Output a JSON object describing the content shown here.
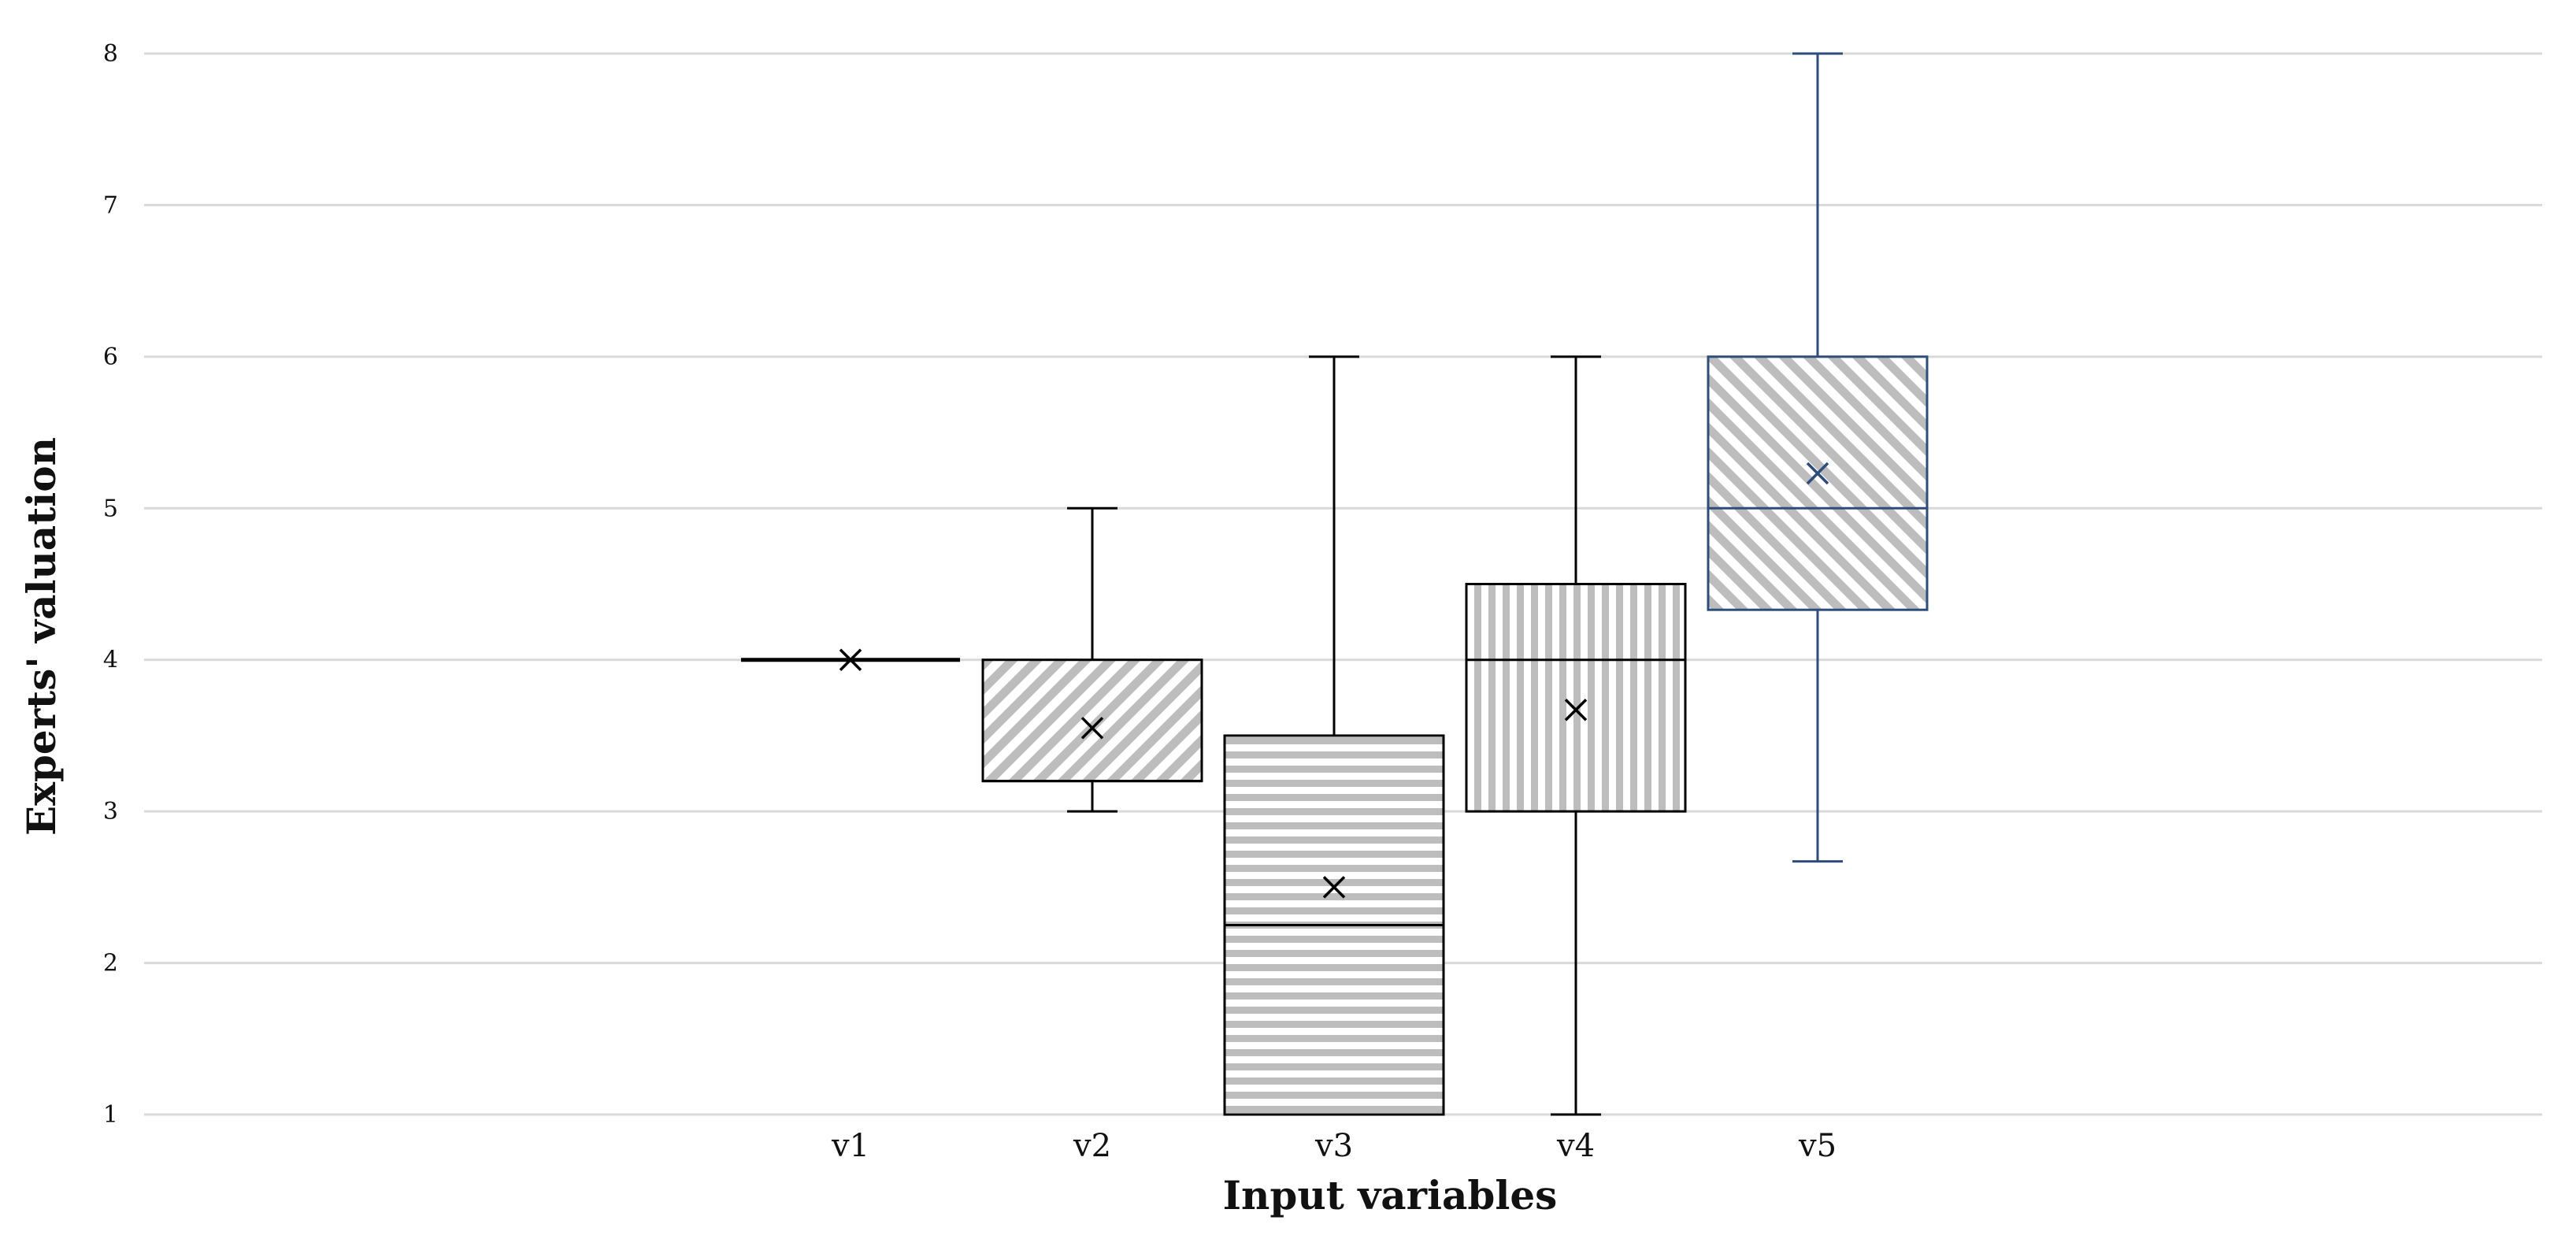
{
  "chart_data": {
    "type": "box",
    "xlabel": "Input variables",
    "ylabel": "Experts' valuation",
    "ylim": [
      1,
      8
    ],
    "yticks": [
      "1",
      "2",
      "3",
      "4",
      "5",
      "6",
      "7",
      "8"
    ],
    "grid": true,
    "categories": [
      "v1",
      "v2",
      "v3",
      "v4",
      "v5"
    ],
    "boxes": [
      {
        "category": "v1",
        "min": 4,
        "q1": 4,
        "median": 4,
        "q3": 4,
        "max": 4,
        "mean": 4.0,
        "pattern": "none",
        "color": "#000000"
      },
      {
        "category": "v2",
        "min": 3,
        "q1": 3.2,
        "median": 3.2,
        "q3": 4,
        "max": 5,
        "mean": 3.55,
        "pattern": "diagonal-down",
        "color": "#000000"
      },
      {
        "category": "v3",
        "min": 1,
        "q1": 1,
        "median": 2.25,
        "q3": 3.5,
        "max": 6,
        "mean": 2.5,
        "pattern": "horizontal",
        "color": "#000000"
      },
      {
        "category": "v4",
        "min": 1,
        "q1": 3,
        "median": 4,
        "q3": 4.5,
        "max": 6,
        "mean": 3.67,
        "pattern": "vertical",
        "color": "#000000"
      },
      {
        "category": "v5",
        "min": 2.67,
        "q1": 4.33,
        "median": 5,
        "q3": 6,
        "max": 8,
        "mean": 5.23,
        "pattern": "diagonal-up",
        "color": "#2e4d7b"
      }
    ]
  }
}
